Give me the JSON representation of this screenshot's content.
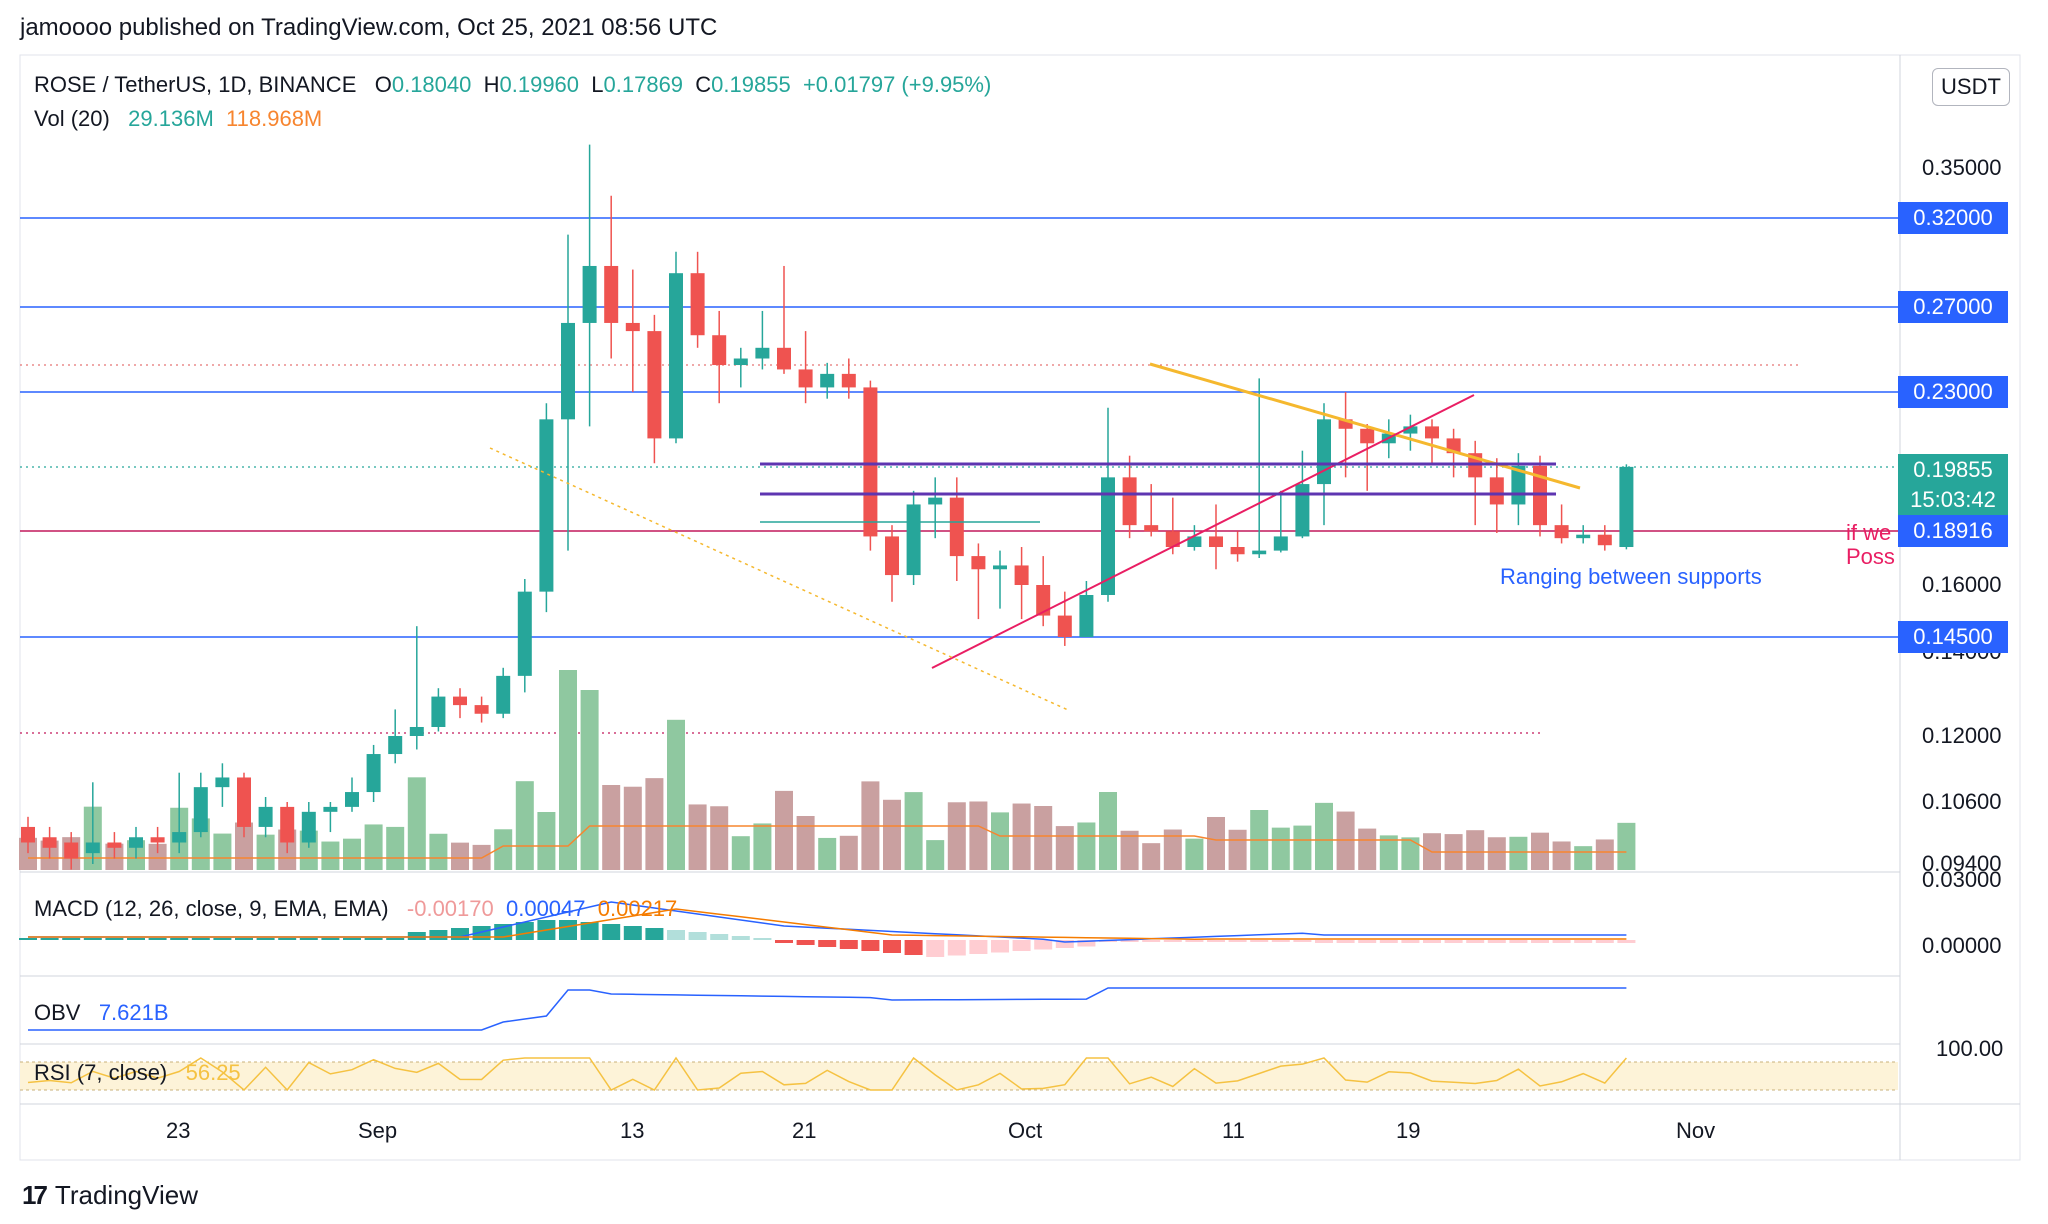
{
  "header": {
    "publisher": "jamoooo published on TradingView.com, Oct 25, 2021 08:56 UTC",
    "symbol": "ROSE / TetherUS, 1D, BINANCE",
    "o_label": "O",
    "o_value": "0.18040",
    "h_label": "H",
    "h_value": "0.19960",
    "l_label": "L",
    "l_value": "0.17869",
    "c_label": "C",
    "c_value": "0.19855",
    "change": "+0.01797 (+9.95%)",
    "vol_label": "Vol (20)",
    "vol_value": "29.136M",
    "vol_ma": "118.968M"
  },
  "currency_button": "USDT",
  "indicators": {
    "macd_label": "MACD (12, 26, close, 9, EMA, EMA)",
    "macd_hist": "-0.00170",
    "macd_line": "0.00047",
    "macd_signal": "0.00217",
    "obv_label": "OBV",
    "obv_value": "7.621B",
    "rsi_label": "RSI (7, close)",
    "rsi_value": "56.25"
  },
  "annotations": {
    "ranging": "Ranging between supports",
    "if_we": "if we",
    "poss": "Poss"
  },
  "price_badges": [
    {
      "text": "0.32000",
      "color": "#2962ff"
    },
    {
      "text": "0.27000",
      "color": "#2962ff"
    },
    {
      "text": "0.23000",
      "color": "#2962ff"
    },
    {
      "text": "0.19855",
      "color": "#26a69a"
    },
    {
      "text": "15:03:42",
      "color": "#26a69a"
    },
    {
      "text": "0.18916",
      "color": "#2962ff"
    },
    {
      "text": "0.14500",
      "color": "#2962ff"
    }
  ],
  "footer": {
    "brand": "TradingView"
  },
  "chart_data": {
    "type": "candlestick",
    "symbol": "ROSE / TetherUS",
    "interval": "1D",
    "y_axis_labels": [
      "0.35000",
      "0.16000",
      "0.14000",
      "0.12000",
      "0.10600",
      "0.09400"
    ],
    "x_axis_labels": [
      "23",
      "Sep",
      "13",
      "21",
      "Oct",
      "11",
      "19",
      "Nov"
    ],
    "horizontal_levels": [
      0.32,
      0.27,
      0.23,
      0.18916,
      0.145
    ],
    "macd_axis_labels": [
      "0.03000",
      "0.00000"
    ],
    "rsi_axis_labels": [
      "100.00"
    ],
    "candles": [
      [
        0.101,
        0.098,
        0.103,
        0.096
      ],
      [
        0.099,
        0.097,
        0.101,
        0.095
      ],
      [
        0.098,
        0.095,
        0.1,
        0.093
      ],
      [
        0.096,
        0.098,
        0.11,
        0.094
      ],
      [
        0.098,
        0.097,
        0.1,
        0.095
      ],
      [
        0.097,
        0.099,
        0.101,
        0.095
      ],
      [
        0.099,
        0.098,
        0.101,
        0.096
      ],
      [
        0.098,
        0.1,
        0.112,
        0.096
      ],
      [
        0.1,
        0.109,
        0.112,
        0.099
      ],
      [
        0.109,
        0.111,
        0.114,
        0.105
      ],
      [
        0.111,
        0.101,
        0.112,
        0.099
      ],
      [
        0.101,
        0.105,
        0.107,
        0.099
      ],
      [
        0.105,
        0.098,
        0.106,
        0.096
      ],
      [
        0.098,
        0.104,
        0.106,
        0.097
      ],
      [
        0.104,
        0.105,
        0.106,
        0.1
      ],
      [
        0.105,
        0.108,
        0.111,
        0.104
      ],
      [
        0.108,
        0.116,
        0.118,
        0.106
      ],
      [
        0.116,
        0.12,
        0.126,
        0.114
      ],
      [
        0.12,
        0.122,
        0.148,
        0.117
      ],
      [
        0.122,
        0.129,
        0.131,
        0.121
      ],
      [
        0.129,
        0.127,
        0.131,
        0.124
      ],
      [
        0.127,
        0.125,
        0.129,
        0.123
      ],
      [
        0.125,
        0.134,
        0.136,
        0.124
      ],
      [
        0.134,
        0.158,
        0.163,
        0.13
      ],
      [
        0.158,
        0.218,
        0.225,
        0.152
      ],
      [
        0.218,
        0.262,
        0.31,
        0.178
      ],
      [
        0.262,
        0.292,
        0.365,
        0.215
      ],
      [
        0.292,
        0.262,
        0.333,
        0.245
      ],
      [
        0.262,
        0.258,
        0.29,
        0.23
      ],
      [
        0.258,
        0.21,
        0.266,
        0.2
      ],
      [
        0.21,
        0.288,
        0.3,
        0.208
      ],
      [
        0.288,
        0.256,
        0.3,
        0.25
      ],
      [
        0.256,
        0.242,
        0.268,
        0.225
      ],
      [
        0.242,
        0.245,
        0.25,
        0.232
      ],
      [
        0.245,
        0.25,
        0.268,
        0.24
      ],
      [
        0.25,
        0.24,
        0.292,
        0.238
      ],
      [
        0.24,
        0.232,
        0.258,
        0.225
      ],
      [
        0.232,
        0.238,
        0.243,
        0.227
      ],
      [
        0.238,
        0.232,
        0.245,
        0.227
      ],
      [
        0.232,
        0.186,
        0.235,
        0.178
      ],
      [
        0.186,
        0.165,
        0.19,
        0.155
      ],
      [
        0.165,
        0.193,
        0.195,
        0.16
      ],
      [
        0.193,
        0.194,
        0.197,
        0.185
      ],
      [
        0.194,
        0.175,
        0.197,
        0.162
      ],
      [
        0.175,
        0.168,
        0.182,
        0.15
      ],
      [
        0.168,
        0.17,
        0.178,
        0.153
      ],
      [
        0.17,
        0.16,
        0.18,
        0.15
      ],
      [
        0.16,
        0.151,
        0.175,
        0.148
      ],
      [
        0.151,
        0.145,
        0.158,
        0.142
      ],
      [
        0.145,
        0.157,
        0.162,
        0.145
      ],
      [
        0.157,
        0.197,
        0.223,
        0.155
      ],
      [
        0.197,
        0.19,
        0.203,
        0.185
      ],
      [
        0.19,
        0.189,
        0.196,
        0.186
      ],
      [
        0.189,
        0.18,
        0.194,
        0.176
      ],
      [
        0.18,
        0.186,
        0.19,
        0.178
      ],
      [
        0.186,
        0.18,
        0.193,
        0.168
      ],
      [
        0.18,
        0.176,
        0.189,
        0.172
      ],
      [
        0.176,
        0.178,
        0.236,
        0.174
      ],
      [
        0.178,
        0.186,
        0.195,
        0.177
      ],
      [
        0.186,
        0.196,
        0.205,
        0.185
      ],
      [
        0.196,
        0.218,
        0.225,
        0.19
      ],
      [
        0.218,
        0.214,
        0.23,
        0.197
      ],
      [
        0.214,
        0.208,
        0.216,
        0.195
      ],
      [
        0.208,
        0.212,
        0.218,
        0.202
      ],
      [
        0.212,
        0.215,
        0.22,
        0.205
      ],
      [
        0.215,
        0.21,
        0.218,
        0.2
      ],
      [
        0.21,
        0.204,
        0.214,
        0.197
      ],
      [
        0.204,
        0.197,
        0.209,
        0.19
      ],
      [
        0.197,
        0.193,
        0.202,
        0.188
      ],
      [
        0.193,
        0.199,
        0.204,
        0.19
      ],
      [
        0.199,
        0.19,
        0.203,
        0.186
      ],
      [
        0.19,
        0.185,
        0.193,
        0.182
      ],
      [
        0.185,
        0.187,
        0.19,
        0.182
      ],
      [
        0.187,
        0.181,
        0.19,
        0.178
      ],
      [
        0.18,
        0.1986,
        0.1996,
        0.1787
      ]
    ],
    "notes": "OHLC candles estimated from the plotted price axis"
  }
}
